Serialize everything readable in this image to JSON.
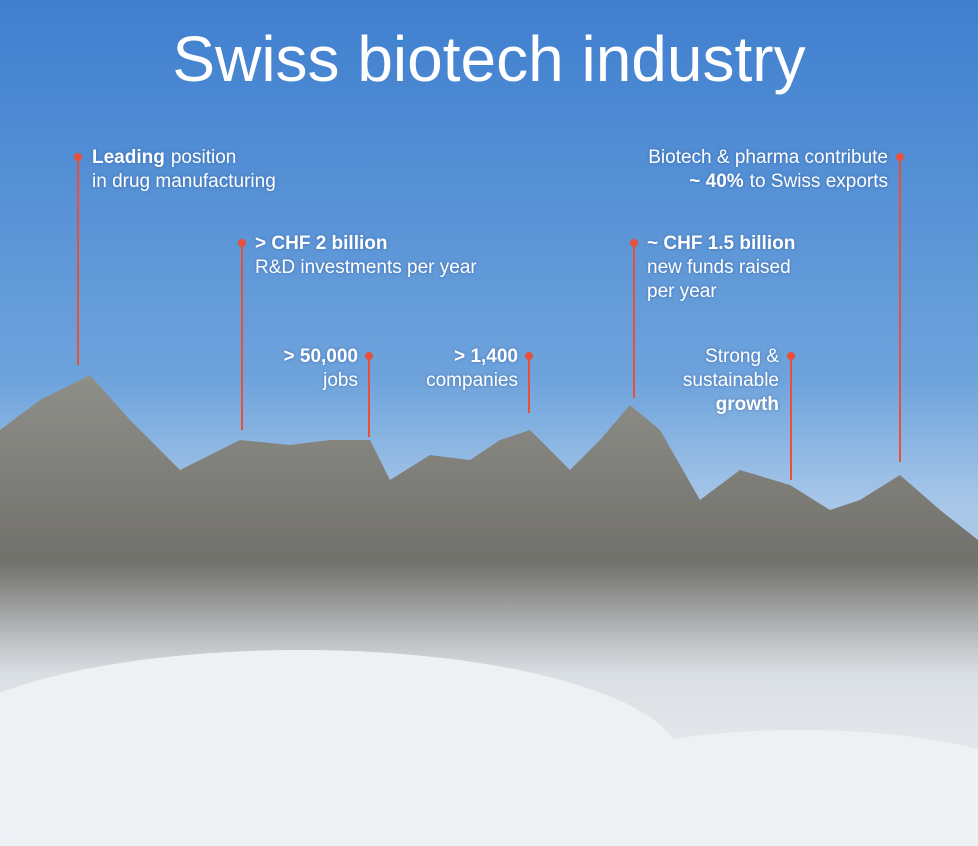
{
  "title": "Swiss biotech industry",
  "callouts": [
    {
      "lines": [
        [
          {
            "t": "Leading",
            "b": true
          },
          {
            "t": "position",
            "b": false
          }
        ],
        [
          {
            "t": "in drug manufacturing",
            "b": false
          }
        ]
      ]
    },
    {
      "lines": [
        [
          {
            "t": "Biotech & pharma contribute",
            "b": false
          }
        ],
        [
          {
            "t": "~ 40%",
            "b": true
          },
          {
            "t": "to Swiss exports",
            "b": false
          }
        ]
      ]
    },
    {
      "lines": [
        [
          {
            "t": "> CHF 2 billion",
            "b": true
          }
        ],
        [
          {
            "t": "R&D investments per year",
            "b": false
          }
        ]
      ]
    },
    {
      "lines": [
        [
          {
            "t": "~ CHF 1.5 billion",
            "b": true
          }
        ],
        [
          {
            "t": "new funds raised",
            "b": false
          }
        ],
        [
          {
            "t": "per year",
            "b": false
          }
        ]
      ]
    },
    {
      "lines": [
        [
          {
            "t": "> 50,000",
            "b": true
          }
        ],
        [
          {
            "t": "jobs",
            "b": false
          }
        ]
      ]
    },
    {
      "lines": [
        [
          {
            "t": "> 1,400",
            "b": true
          }
        ],
        [
          {
            "t": "companies",
            "b": false
          }
        ]
      ]
    },
    {
      "lines": [
        [
          {
            "t": "Strong &",
            "b": false
          }
        ],
        [
          {
            "t": "sustainable",
            "b": false
          }
        ],
        [
          {
            "t": "growth",
            "b": true
          }
        ]
      ]
    }
  ]
}
